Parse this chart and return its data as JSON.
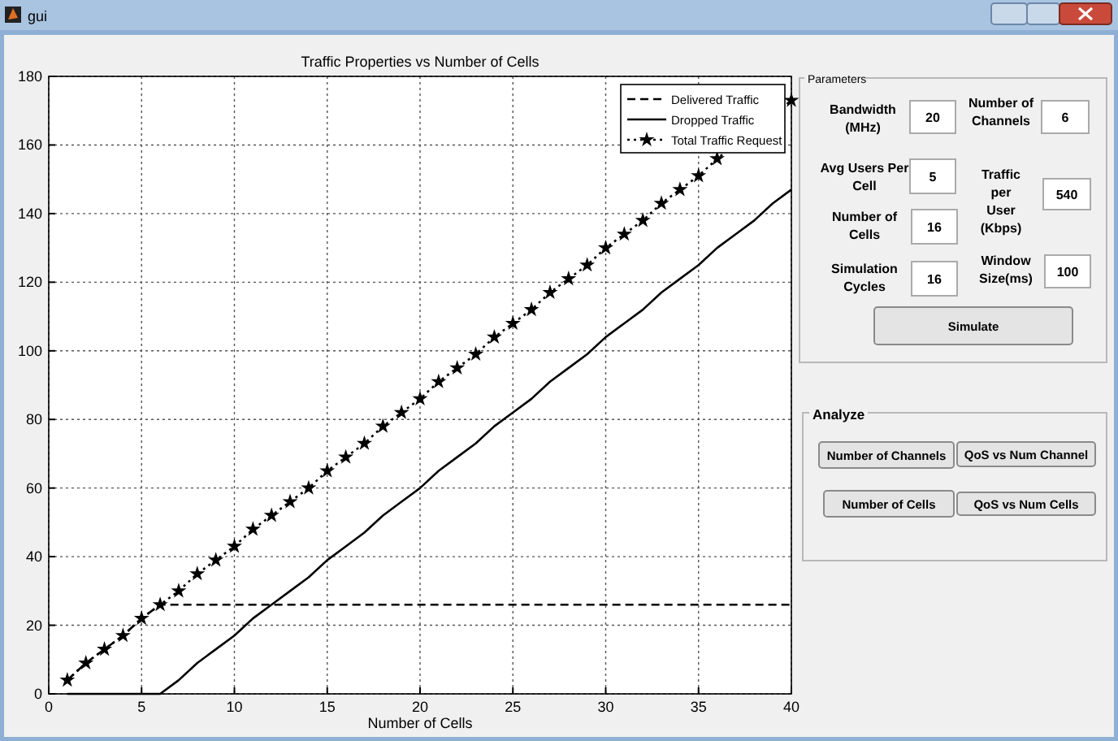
{
  "chart_data": [
    {
      "type": "other",
      "title": "gui"
    },
    {
      "type": "line",
      "title": "Traffic Properties vs Number of Cells",
      "xlabel": "Number of Cells",
      "x": [
        1,
        2,
        3,
        4,
        5,
        6,
        7,
        8,
        9,
        10,
        11,
        12,
        13,
        14,
        15,
        16,
        17,
        18,
        19,
        20,
        21,
        22,
        23,
        24,
        25,
        26,
        27,
        28,
        29,
        30,
        31,
        32,
        33,
        34,
        35,
        36,
        37,
        38,
        39,
        40
      ],
      "series": [
        {
          "name": "Delivered Traffic",
          "color": "#000000",
          "line_style": "dashed",
          "marker": "none",
          "values": [
            4,
            9,
            13,
            17,
            22,
            26,
            26,
            26,
            26,
            26,
            26,
            26,
            26,
            26,
            26,
            26,
            26,
            26,
            26,
            26,
            26,
            26,
            26,
            26,
            26,
            26,
            26,
            26,
            26,
            26,
            26,
            26,
            26,
            26,
            26,
            26,
            26,
            26,
            26,
            26
          ]
        },
        {
          "name": "Dropped Traffic",
          "color": "#000000",
          "line_style": "solid",
          "marker": "none",
          "values": [
            0,
            0,
            0,
            0,
            0,
            0,
            4,
            9,
            13,
            17,
            22,
            26,
            30,
            34,
            39,
            43,
            47,
            52,
            56,
            60,
            65,
            69,
            73,
            78,
            82,
            86,
            91,
            95,
            99,
            104,
            108,
            112,
            117,
            121,
            125,
            130,
            134,
            138,
            143,
            147
          ]
        },
        {
          "name": "Total Traffic Request",
          "color": "#000000",
          "line_style": "dotted",
          "marker": "star",
          "values": [
            4,
            9,
            13,
            17,
            22,
            26,
            30,
            35,
            39,
            43,
            48,
            52,
            56,
            60,
            65,
            69,
            73,
            78,
            82,
            86,
            91,
            95,
            99,
            104,
            108,
            112,
            117,
            121,
            125,
            130,
            134,
            138,
            143,
            147,
            151,
            156,
            null,
            null,
            null,
            173
          ]
        }
      ],
      "xlim": [
        0,
        40
      ],
      "xticks": [
        0,
        5,
        10,
        15,
        20,
        25,
        30,
        35,
        40
      ],
      "ylim": [
        0,
        180
      ],
      "yticks": [
        0,
        20,
        40,
        60,
        80,
        100,
        120,
        140,
        160,
        180
      ],
      "grid": true,
      "legend": "top right"
    },
    {
      "type": "other",
      "title": "Parameters",
      "annotations": [
        "Bandwidth (MHz)",
        "20",
        "Number of Channels",
        "6",
        "Avg Users Per Cell",
        "5",
        "Traffic per User (Kbps)",
        "540",
        "Number of Cells",
        "16",
        "Simulation Cycles",
        "16",
        "Window Size(ms)",
        "100",
        "Simulate"
      ]
    },
    {
      "type": "other",
      "title": "Analyze",
      "annotations": [
        "Number of Channels",
        "QoS vs Num Channel",
        "Number of Cells",
        "QoS vs Num Cells"
      ]
    }
  ]
}
